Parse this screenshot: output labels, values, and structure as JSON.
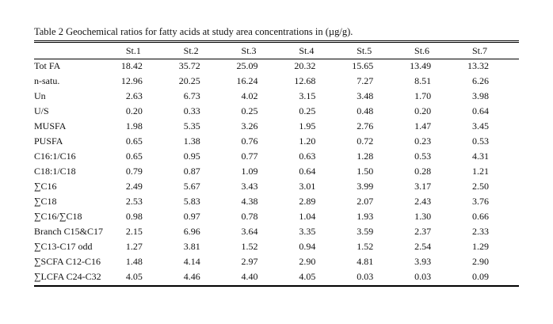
{
  "caption": "Table 2 Geochemical ratios for fatty acids at study area concentrations in (µg/g).",
  "table": {
    "headers": [
      "",
      "St.1",
      "St.2",
      "St.3",
      "St.4",
      "St.5",
      "St.6",
      "St.7"
    ],
    "rows": [
      {
        "label": "Tot FA",
        "values": [
          "18.42",
          "35.72",
          "25.09",
          "20.32",
          "15.65",
          "13.49",
          "13.32"
        ]
      },
      {
        "label": "n-satu.",
        "values": [
          "12.96",
          "20.25",
          "16.24",
          "12.68",
          "7.27",
          "8.51",
          "6.26"
        ]
      },
      {
        "label": "Un",
        "values": [
          "2.63",
          "6.73",
          "4.02",
          "3.15",
          "3.48",
          "1.70",
          "3.98"
        ]
      },
      {
        "label": "U/S",
        "values": [
          "0.20",
          "0.33",
          "0.25",
          "0.25",
          "0.48",
          "0.20",
          "0.64"
        ]
      },
      {
        "label": "MUSFA",
        "values": [
          "1.98",
          "5.35",
          "3.26",
          "1.95",
          "2.76",
          "1.47",
          "3.45"
        ]
      },
      {
        "label": "PUSFA",
        "values": [
          "0.65",
          "1.38",
          "0.76",
          "1.20",
          "0.72",
          "0.23",
          "0.53"
        ]
      },
      {
        "label": "C16:1/C16",
        "values": [
          "0.65",
          "0.95",
          "0.77",
          "0.63",
          "1.28",
          "0.53",
          "4.31"
        ]
      },
      {
        "label": "C18:1/C18",
        "values": [
          "0.79",
          "0.87",
          "1.09",
          "0.64",
          "1.50",
          "0.28",
          "1.21"
        ]
      },
      {
        "label": "∑C16",
        "values": [
          "2.49",
          "5.67",
          "3.43",
          "3.01",
          "3.99",
          "3.17",
          "2.50"
        ]
      },
      {
        "label": "∑C18",
        "values": [
          "2.53",
          "5.83",
          "4.38",
          "2.89",
          "2.07",
          "2.43",
          "3.76"
        ]
      },
      {
        "label": "∑C16/∑C18",
        "values": [
          "0.98",
          "0.97",
          "0.78",
          "1.04",
          "1.93",
          "1.30",
          "0.66"
        ]
      },
      {
        "label": "Branch C15&C17",
        "values": [
          "2.15",
          "6.96",
          "3.64",
          "3.35",
          "3.59",
          "2.37",
          "2.33"
        ]
      },
      {
        "label": "∑C13-C17 odd",
        "values": [
          "1.27",
          "3.81",
          "1.52",
          "0.94",
          "1.52",
          "2.54",
          "1.29"
        ]
      },
      {
        "label": "∑SCFA C12-C16",
        "values": [
          "1.48",
          "4.14",
          "2.97",
          "2.90",
          "4.81",
          "3.93",
          "2.90"
        ]
      },
      {
        "label": "∑LCFA C24-C32",
        "values": [
          "4.05",
          "4.46",
          "4.40",
          "4.05",
          "0.03",
          "0.03",
          "0.09"
        ]
      }
    ]
  }
}
